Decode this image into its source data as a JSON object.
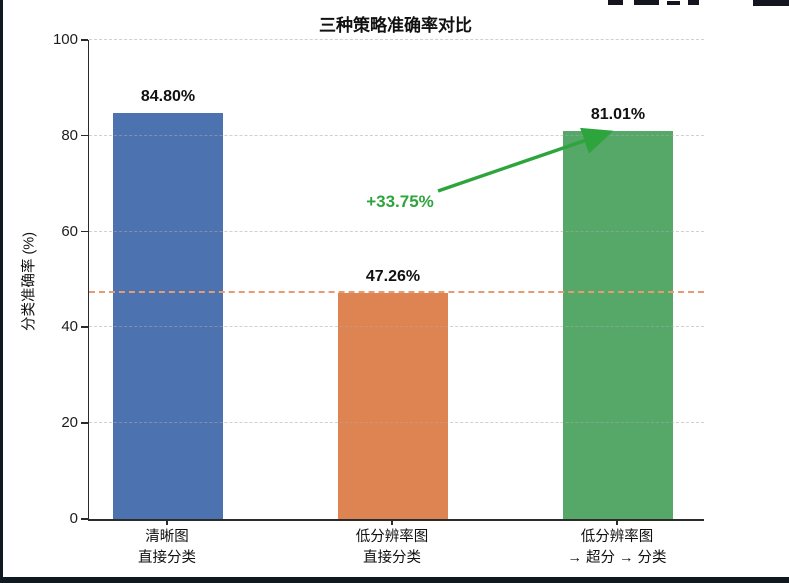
{
  "frame": {
    "border_color": "#101820"
  },
  "chart_data": {
    "type": "bar",
    "title": "三种策略准确率对比",
    "xlabel": "",
    "ylabel": "分类准确率 (%)",
    "ylim": [
      0,
      100
    ],
    "yticks": [
      0,
      20,
      40,
      60,
      80,
      100
    ],
    "grid": "horizontal dashed gridlines",
    "legend": "none",
    "categories": [
      {
        "line1": "清晰图",
        "line2": "直接分类"
      },
      {
        "line1": "低分辨率图",
        "line2": "直接分类"
      },
      {
        "line1": "低分辨率图",
        "line2": "→ 超分 → 分类"
      }
    ],
    "values": [
      84.8,
      47.26,
      81.01
    ],
    "value_labels": [
      "84.80%",
      "47.26%",
      "81.01%"
    ],
    "bar_colors": [
      "#4C72B0",
      "#DD8452",
      "#55A868"
    ],
    "reference_line": {
      "value": 47.26,
      "color": "#E89B72",
      "style": "dashed"
    },
    "annotation": {
      "text": "+33.75%",
      "color": "#2EA43C",
      "arrow_from": [
        438,
        191
      ],
      "arrow_to": [
        607,
        133
      ]
    }
  }
}
